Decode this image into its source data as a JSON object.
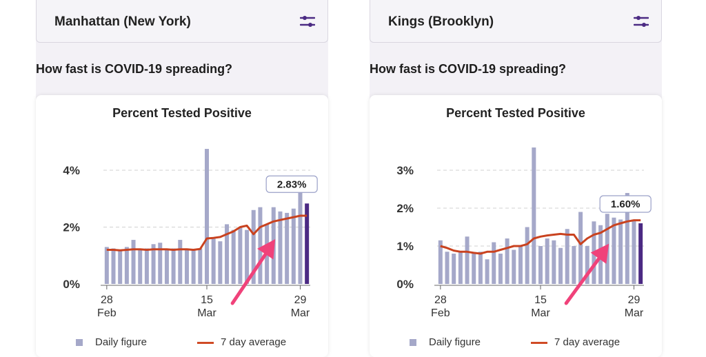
{
  "panels": [
    {
      "region": "Manhattan (New York)",
      "question": "How fast is COVID-19 spreading?",
      "card_title": "Percent Tested Positive",
      "legend": {
        "daily": "Daily figure",
        "avg": "7 day average"
      },
      "tooltip": "2.83%",
      "colors": {
        "bar": "#a5a8c9",
        "last_bar": "#4b2a83",
        "line": "#c9421f",
        "grid": "#d0d0d0",
        "arrow": "#f0427a"
      }
    },
    {
      "region": "Kings (Brooklyn)",
      "question": "How fast is COVID-19 spreading?",
      "card_title": "Percent Tested Positive",
      "legend": {
        "daily": "Daily figure",
        "avg": "7 day average"
      },
      "tooltip": "1.60%",
      "colors": {
        "bar": "#a5a8c9",
        "last_bar": "#4b2a83",
        "line": "#c9421f",
        "grid": "#d0d0d0",
        "arrow": "#f0427a"
      }
    }
  ],
  "chart_data": [
    {
      "type": "bar",
      "title": "Percent Tested Positive",
      "xlabel": "",
      "ylabel": "",
      "x_ticks": [
        {
          "index": 0,
          "day": "28",
          "month": "Feb"
        },
        {
          "index": 15,
          "day": "15",
          "month": "Mar"
        },
        {
          "index": 29,
          "day": "29",
          "month": "Mar"
        }
      ],
      "y_ticks": [
        {
          "value": 0,
          "label": "0%"
        },
        {
          "value": 2,
          "label": "2%"
        },
        {
          "value": 4,
          "label": "4%"
        }
      ],
      "ylim": [
        0,
        4.8
      ],
      "series": [
        {
          "name": "Daily figure",
          "values": [
            1.3,
            1.25,
            1.2,
            1.3,
            1.55,
            1.2,
            1.25,
            1.4,
            1.45,
            1.2,
            1.25,
            1.55,
            1.25,
            1.2,
            1.25,
            4.75,
            1.6,
            1.5,
            2.1,
            1.9,
            2.0,
            1.9,
            2.6,
            2.7,
            2.1,
            2.7,
            2.55,
            2.5,
            2.65,
            3.25,
            2.83
          ]
        },
        {
          "name": "7 day average",
          "values": [
            1.2,
            1.2,
            1.18,
            1.2,
            1.22,
            1.22,
            1.2,
            1.22,
            1.22,
            1.22,
            1.2,
            1.22,
            1.22,
            1.2,
            1.23,
            1.6,
            1.62,
            1.65,
            1.75,
            1.85,
            2.0,
            2.05,
            1.75,
            2.0,
            2.1,
            2.2,
            2.25,
            2.3,
            2.35,
            2.4,
            2.4
          ]
        }
      ],
      "highlight": {
        "index": 30,
        "label": "2.83%"
      }
    },
    {
      "type": "bar",
      "title": "Percent Tested Positive",
      "xlabel": "",
      "ylabel": "",
      "x_ticks": [
        {
          "index": 0,
          "day": "28",
          "month": "Feb"
        },
        {
          "index": 15,
          "day": "15",
          "month": "Mar"
        },
        {
          "index": 29,
          "day": "29",
          "month": "Mar"
        }
      ],
      "y_ticks": [
        {
          "value": 0,
          "label": "0%"
        },
        {
          "value": 1,
          "label": "1%"
        },
        {
          "value": 2,
          "label": "2%"
        },
        {
          "value": 3,
          "label": "3%"
        }
      ],
      "ylim": [
        0,
        3.6
      ],
      "series": [
        {
          "name": "Daily figure",
          "values": [
            1.15,
            0.85,
            0.8,
            0.85,
            1.25,
            0.8,
            0.85,
            0.65,
            1.1,
            0.8,
            1.2,
            0.9,
            1.0,
            1.5,
            3.6,
            1.0,
            1.2,
            1.15,
            0.95,
            1.45,
            1.0,
            1.9,
            1.0,
            1.65,
            1.55,
            1.85,
            1.75,
            1.7,
            2.4,
            1.7,
            1.6
          ]
        },
        {
          "name": "7 day average",
          "values": [
            1.0,
            0.95,
            0.88,
            0.85,
            0.85,
            0.82,
            0.8,
            0.85,
            0.85,
            0.9,
            0.95,
            1.0,
            1.0,
            1.05,
            1.2,
            1.25,
            1.28,
            1.3,
            1.32,
            1.3,
            1.3,
            1.05,
            1.2,
            1.3,
            1.35,
            1.45,
            1.55,
            1.6,
            1.65,
            1.68,
            1.68
          ]
        }
      ],
      "highlight": {
        "index": 30,
        "label": "1.60%"
      }
    }
  ]
}
